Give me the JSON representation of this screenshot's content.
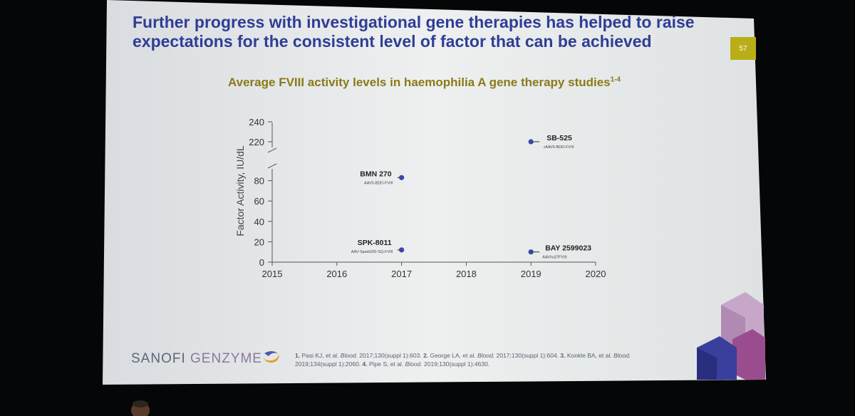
{
  "slide": {
    "title": "Further progress with investigational gene therapies has helped to raise expectations for the consistent level of factor that can be achieved",
    "page_number": "57",
    "subtitle": "Average FVIII activity levels in haemophilia A gene therapy studies",
    "subtitle_sup": "1-4",
    "logo": {
      "word1": "SANOFI",
      "word2": "GENZYME"
    },
    "references": [
      {
        "num": "1.",
        "authors": "Pasi KJ, et al.",
        "journal": "Blood.",
        "cite": "2017;130(suppl 1):603."
      },
      {
        "num": "2.",
        "authors": "George LA, et al.",
        "journal": "Blood.",
        "cite": "2017;130(suppl 1):604."
      },
      {
        "num": "3.",
        "authors": "Konkle BA, et al.",
        "journal": "Blood.",
        "cite": "2019;134(suppl 1):2060."
      },
      {
        "num": "4.",
        "authors": "Pipe S, et al.",
        "journal": "Blood.",
        "cite": "2019;130(suppl 1):4630."
      }
    ],
    "colors": {
      "title": "#2f3d96",
      "subtitle": "#8a7a17",
      "point": "#3b45a6",
      "badge": "#b9ad18"
    }
  },
  "chart_data": {
    "type": "scatter",
    "title": "Average FVIII activity levels in haemophilia A gene therapy studies",
    "ylabel": "Factor Activity, IU/dL",
    "xlabel": "",
    "xlim": [
      2015,
      2020
    ],
    "x_ticks": [
      "2015",
      "2016",
      "2017",
      "2018",
      "2019",
      "2020"
    ],
    "y_ticks_lower": [
      "0",
      "20",
      "40",
      "60",
      "80"
    ],
    "y_ticks_upper": [
      "220",
      "240"
    ],
    "y_break": true,
    "points": [
      {
        "name": "SB-525",
        "vector": "rAAV6-BDD-FVIII",
        "x": 2019,
        "y": 220
      },
      {
        "name": "BMN 270",
        "vector": "AAV5-BDD-FVIII",
        "x": 2017,
        "y": 83
      },
      {
        "name": "SPK-8011",
        "vector": "AAV-Spark200-SQ-FVIII",
        "x": 2017,
        "y": 12
      },
      {
        "name": "BAY 2599023",
        "vector": "AAVhu37FVIII",
        "x": 2019,
        "y": 10
      }
    ]
  }
}
